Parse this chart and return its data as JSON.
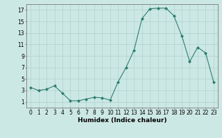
{
  "x": [
    0,
    1,
    2,
    3,
    4,
    5,
    6,
    7,
    8,
    9,
    10,
    11,
    12,
    13,
    14,
    15,
    16,
    17,
    18,
    19,
    20,
    21,
    22,
    23
  ],
  "y": [
    3.5,
    3.0,
    3.2,
    3.8,
    2.5,
    1.2,
    1.2,
    1.5,
    1.8,
    1.7,
    1.3,
    4.5,
    7.0,
    10.0,
    15.5,
    17.2,
    17.3,
    17.3,
    16.0,
    12.5,
    8.0,
    10.5,
    9.5,
    4.5
  ],
  "xlabel": "Humidex (Indice chaleur)",
  "line_color": "#2e7d6e",
  "marker": "D",
  "marker_size": 2,
  "bg_color": "#cce8e4",
  "grid_color": "#b0d0cc",
  "xlim": [
    -0.5,
    23.5
  ],
  "ylim": [
    0,
    18
  ],
  "yticks": [
    1,
    3,
    5,
    7,
    9,
    11,
    13,
    15,
    17
  ],
  "xticks": [
    0,
    1,
    2,
    3,
    4,
    5,
    6,
    7,
    8,
    9,
    10,
    11,
    12,
    13,
    14,
    15,
    16,
    17,
    18,
    19,
    20,
    21,
    22,
    23
  ],
  "tick_fontsize": 5.5,
  "xlabel_fontsize": 6.5
}
